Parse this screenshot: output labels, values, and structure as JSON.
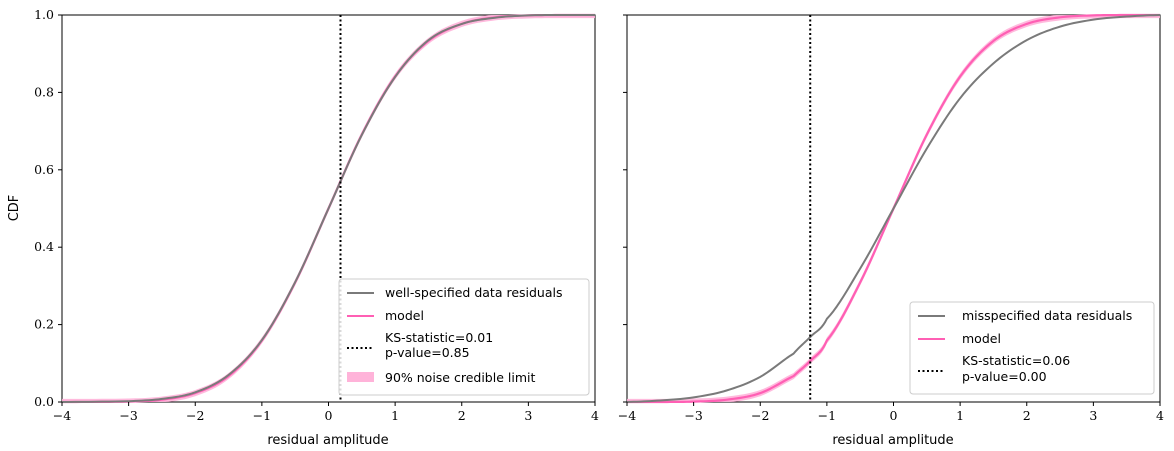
{
  "chart_data": [
    {
      "type": "line",
      "xlabel": "residual amplitude",
      "ylabel": "CDF",
      "xlim": [
        -4,
        4
      ],
      "ylim": [
        0,
        1
      ],
      "xticks": [
        "−4",
        "−3",
        "−2",
        "−1",
        "0",
        "1",
        "2",
        "3",
        "4"
      ],
      "yticks": [
        "0.0",
        "0.2",
        "0.4",
        "0.6",
        "0.8",
        "1.0"
      ],
      "legend_position": "lower-right",
      "colors": {
        "data": "#7a7a7a",
        "model": "#ff5fb4",
        "band": "#ffb3d9",
        "ks": "#000000"
      },
      "series": [
        {
          "name": "well-specified data residuals",
          "x": [
            -4,
            -3,
            -2.5,
            -2,
            -1.5,
            -1,
            -0.5,
            0,
            0.5,
            1,
            1.5,
            2,
            2.5,
            3,
            3.5,
            4
          ],
          "y": [
            0.0,
            0.002,
            0.008,
            0.025,
            0.07,
            0.16,
            0.31,
            0.5,
            0.69,
            0.84,
            0.935,
            0.977,
            0.993,
            0.999,
            1.0,
            1.0
          ]
        },
        {
          "name": "model",
          "x": [
            -4,
            -3,
            -2.5,
            -2,
            -1.5,
            -1,
            -0.5,
            0,
            0.5,
            1,
            1.5,
            2,
            2.5,
            3,
            3.5,
            4
          ],
          "y": [
            0.0,
            0.001,
            0.006,
            0.023,
            0.067,
            0.159,
            0.309,
            0.5,
            0.691,
            0.841,
            0.933,
            0.977,
            0.994,
            0.999,
            1.0,
            1.0
          ]
        }
      ],
      "ks_line": {
        "x": 0.18,
        "label": "KS-statistic=0.01",
        "pvalue": "p-value=0.85"
      },
      "band": {
        "name": "90% noise credible limit",
        "width": 0.008
      }
    },
    {
      "type": "line",
      "xlabel": "residual amplitude",
      "ylabel": "",
      "xlim": [
        -4,
        4
      ],
      "ylim": [
        0,
        1
      ],
      "xticks": [
        "−4",
        "−3",
        "−2",
        "−1",
        "0",
        "1",
        "2",
        "3",
        "4"
      ],
      "yticks": [],
      "legend_position": "lower-right",
      "colors": {
        "data": "#7a7a7a",
        "model": "#ff5fb4",
        "band": "#ffb3d9",
        "ks": "#000000"
      },
      "series": [
        {
          "name": "misspecified data residuals",
          "x": [
            -4,
            -3.5,
            -3,
            -2.5,
            -2,
            -1.5,
            -1.25,
            -1,
            -0.5,
            0,
            0.5,
            1,
            1.5,
            2,
            2.5,
            3,
            3.5,
            4
          ],
          "y": [
            0.0,
            0.004,
            0.012,
            0.03,
            0.065,
            0.125,
            0.168,
            0.215,
            0.345,
            0.5,
            0.655,
            0.785,
            0.875,
            0.935,
            0.97,
            0.988,
            0.996,
            1.0
          ]
        },
        {
          "name": "model",
          "x": [
            -4,
            -3.5,
            -3,
            -2.5,
            -2,
            -1.5,
            -1.25,
            -1,
            -0.5,
            0,
            0.5,
            1,
            1.5,
            2,
            2.5,
            3,
            3.5,
            4
          ],
          "y": [
            0.0,
            0.0,
            0.001,
            0.006,
            0.023,
            0.067,
            0.106,
            0.159,
            0.309,
            0.5,
            0.691,
            0.841,
            0.933,
            0.977,
            0.994,
            0.999,
            1.0,
            1.0
          ]
        }
      ],
      "ks_line": {
        "x": -1.25,
        "label": "KS-statistic=0.06",
        "pvalue": "p-value=0.00"
      },
      "band": {
        "name": "",
        "width": 0.008
      }
    }
  ]
}
